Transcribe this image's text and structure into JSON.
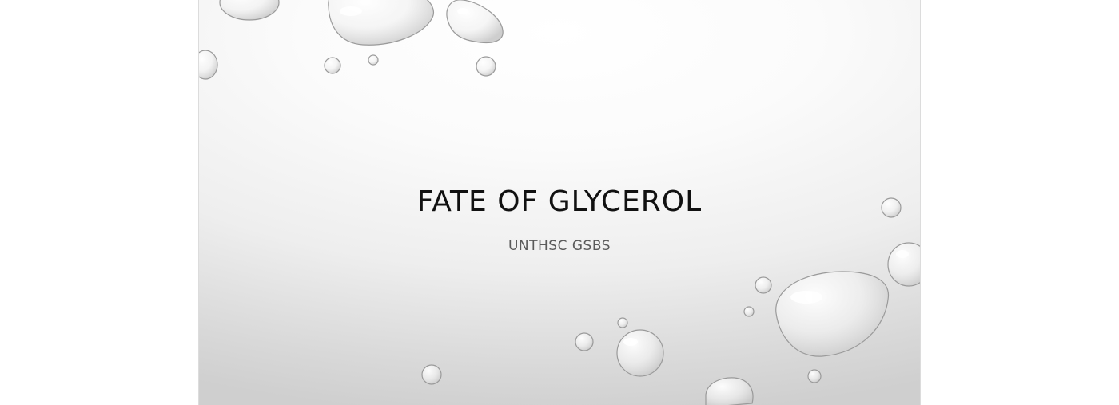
{
  "slide": {
    "title": "FATE OF GLYCEROL",
    "subtitle": "UNTHSC GSBS"
  },
  "theme": {
    "background_light": "#ffffff",
    "background_dark": "#cfcfcf",
    "title_color": "#111111",
    "subtitle_color": "#5a5a5a"
  }
}
